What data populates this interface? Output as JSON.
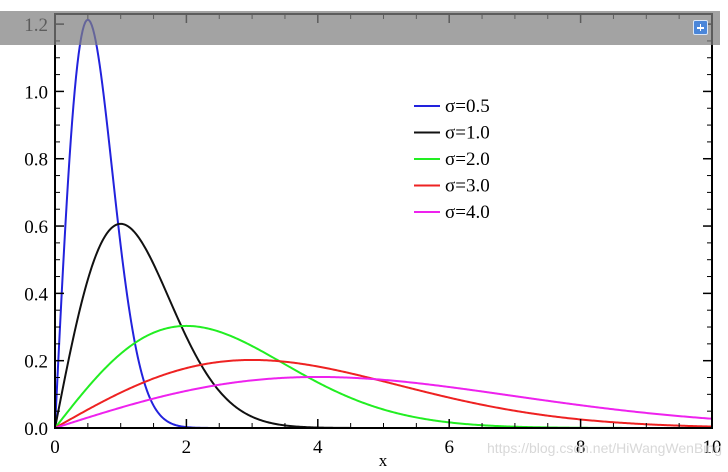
{
  "chart_data": {
    "type": "line",
    "xlabel": "x",
    "ylabel": "",
    "xlim": [
      0,
      10
    ],
    "ylim": [
      0,
      1.23
    ],
    "x_ticks": [
      "0",
      "2",
      "4",
      "6",
      "8",
      "10"
    ],
    "x_tick_values": [
      0,
      2,
      4,
      6,
      8,
      10
    ],
    "y_ticks": [
      "0.0",
      "0.2",
      "0.4",
      "0.6",
      "0.8",
      "1.0",
      "1.2"
    ],
    "y_tick_values": [
      0,
      0.2,
      0.4,
      0.6,
      0.8,
      1.0,
      1.2
    ],
    "legend_position": "top-right",
    "grid": false,
    "series": [
      {
        "name": "σ=0.5",
        "color": "#2222dd",
        "peak": {
          "x": 0.5,
          "y": 1.213
        }
      },
      {
        "name": "σ=1.0",
        "color": "#111111",
        "peak": {
          "x": 1.0,
          "y": 0.607
        }
      },
      {
        "name": "σ=2.0",
        "color": "#22ee22",
        "peak": {
          "x": 2.0,
          "y": 0.303
        }
      },
      {
        "name": "σ=3.0",
        "color": "#ee2222",
        "peak": {
          "x": 3.0,
          "y": 0.202
        }
      },
      {
        "name": "σ=4.0",
        "color": "#ee22ee",
        "peak": {
          "x": 4.0,
          "y": 0.152
        }
      }
    ]
  },
  "watermark": "https://blog.csdn.net/HiWangWenBing",
  "toolbar": {
    "expand_icon": "plus-square-icon"
  }
}
